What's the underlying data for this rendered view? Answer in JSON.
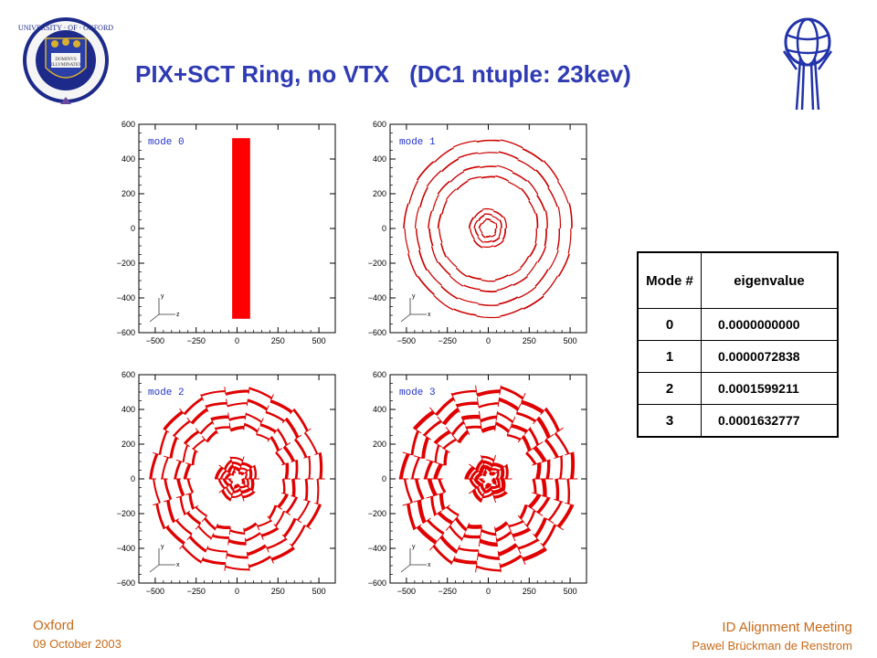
{
  "title": {
    "part1": "PIX+SCT Ring, no VTX",
    "part2": "(DC1 ntuple: 23kev)"
  },
  "logos": {
    "left": "University of Oxford crest",
    "right": "ATLAS logo"
  },
  "chart_data": [
    {
      "type": "scatter",
      "panel": "mode 0",
      "label": "mode 0",
      "x_ticks": [
        "−500",
        "−250",
        "0",
        "250",
        "500"
      ],
      "y_ticks": [
        "600",
        "400",
        "200",
        "0",
        "−200",
        "−400",
        "−600"
      ],
      "xlim": [
        -600,
        600
      ],
      "ylim": [
        -600,
        600
      ],
      "shape": "rectangle",
      "rect": {
        "x": [
          -30,
          80
        ],
        "y": [
          -520,
          520
        ]
      },
      "color": "#ff0000",
      "axis_gizmo": [
        "y",
        "z"
      ]
    },
    {
      "type": "scatter",
      "panel": "mode 1",
      "label": "mode 1",
      "x_ticks": [
        "−500",
        "−250",
        "0",
        "250",
        "500"
      ],
      "y_ticks": [
        "600",
        "400",
        "200",
        "0",
        "−200",
        "−400",
        "−600"
      ],
      "xlim": [
        -600,
        600
      ],
      "ylim": [
        -600,
        600
      ],
      "ring_radii": [
        50,
        80,
        110,
        300,
        360,
        440,
        510
      ],
      "ring_strength": 1,
      "color": "#cc0000",
      "axis_gizmo": [
        "y",
        "x"
      ]
    },
    {
      "type": "scatter",
      "panel": "mode 2",
      "label": "mode 2",
      "x_ticks": [
        "−500",
        "−250",
        "0",
        "250",
        "500"
      ],
      "y_ticks": [
        "600",
        "400",
        "200",
        "0",
        "−200",
        "−400",
        "−600"
      ],
      "xlim": [
        -600,
        600
      ],
      "ylim": [
        -600,
        600
      ],
      "ring_radii": [
        50,
        80,
        110,
        300,
        360,
        440,
        510
      ],
      "ring_strength": 3,
      "color": "#e00000",
      "axis_gizmo": [
        "y",
        "x"
      ]
    },
    {
      "type": "scatter",
      "panel": "mode 3",
      "label": "mode 3",
      "x_ticks": [
        "−500",
        "−250",
        "0",
        "250",
        "500"
      ],
      "y_ticks": [
        "600",
        "400",
        "200",
        "0",
        "−200",
        "−400",
        "−600"
      ],
      "xlim": [
        -600,
        600
      ],
      "ylim": [
        -600,
        600
      ],
      "ring_radii": [
        50,
        80,
        110,
        300,
        360,
        440,
        510
      ],
      "ring_strength": 4,
      "color": "#e00000",
      "axis_gizmo": [
        "y",
        "x"
      ]
    }
  ],
  "table": {
    "headers": [
      "Mode #",
      "eigenvalue"
    ],
    "rows": [
      {
        "mode": "0",
        "eigenvalue": "0.0000000000"
      },
      {
        "mode": "1",
        "eigenvalue": "0.0000072838"
      },
      {
        "mode": "2",
        "eigenvalue": "0.0001599211"
      },
      {
        "mode": "3",
        "eigenvalue": "0.0001632777"
      }
    ]
  },
  "footer": {
    "location": "Oxford",
    "date": "09 October 2003",
    "meeting": "ID Alignment Meeting",
    "author": "Pawel Brückman de Renstrom"
  }
}
